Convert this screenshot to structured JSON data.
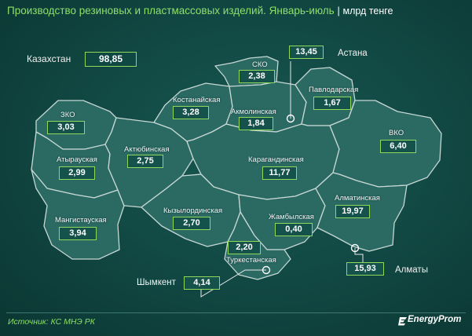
{
  "title": {
    "main": "Производство резиновых и пластмассовых изделий. Январь-июль",
    "separator": "|",
    "unit": "млрд тенге"
  },
  "total": {
    "label": "Казахстан",
    "value": "98,85"
  },
  "regions": {
    "sko": {
      "name": "СКО",
      "value": "2,38"
    },
    "astana": {
      "name": "Астана",
      "value": "13,45"
    },
    "pavlodar": {
      "name": "Павлодарская",
      "value": "1,67"
    },
    "kostanay": {
      "name": "Костанайская",
      "value": "3,28"
    },
    "akmola": {
      "name": "Акмолинская",
      "value": "1,84"
    },
    "zko": {
      "name": "ЗКО",
      "value": "3,03"
    },
    "aktobe": {
      "name": "Актюбинская",
      "value": "2,75"
    },
    "karaganda": {
      "name": "Карагандинская",
      "value": "11,77"
    },
    "vko": {
      "name": "ВКО",
      "value": "6,40"
    },
    "atyrau": {
      "name": "Атырауская",
      "value": "2,99"
    },
    "almaty_reg": {
      "name": "Алматинская",
      "value": "19,97"
    },
    "kyzylorda": {
      "name": "Кызылординская",
      "value": "2,70"
    },
    "zhambyl": {
      "name": "Жамбылская",
      "value": "0,40"
    },
    "mangystau": {
      "name": "Мангистауская",
      "value": "3,94"
    },
    "turkestan": {
      "name": "Туркестанская",
      "value": "2,20"
    },
    "almaty_city": {
      "name": "Алматы",
      "value": "15,93"
    },
    "shymkent": {
      "name": "Шымкент",
      "value": "4,14"
    }
  },
  "footer": {
    "source": "Источник: КС МНЭ РК",
    "brand": "EnergyProm"
  },
  "colors": {
    "background": "#124a45",
    "region_fill": "#2b6963",
    "title_accent": "#8ee06a",
    "box_border": "#8fd85a"
  }
}
